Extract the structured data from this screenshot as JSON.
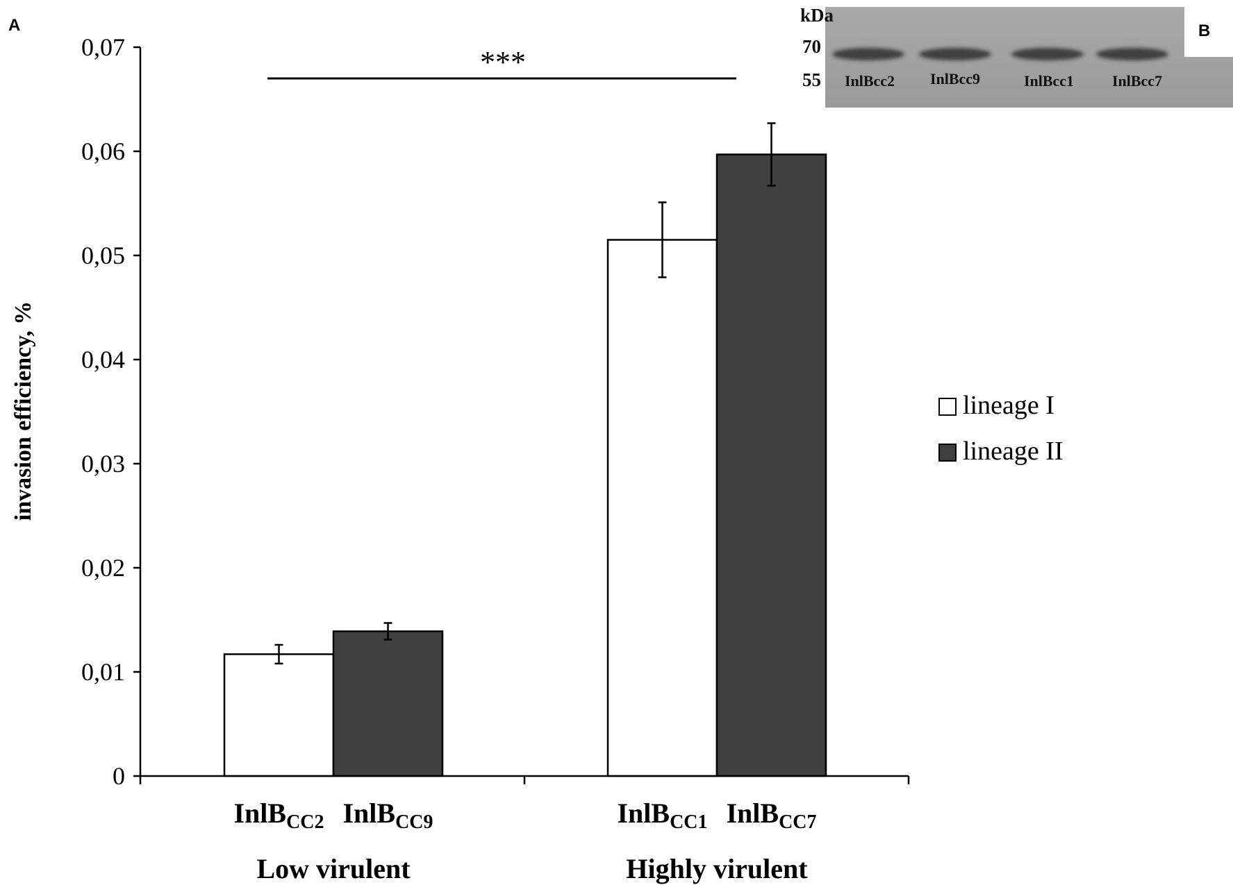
{
  "panel_labels": {
    "a": "A",
    "b": "B"
  },
  "chart_data": {
    "type": "bar",
    "title": "",
    "xlabel": "",
    "ylabel": "invasion efficiency, %",
    "ylim": [
      0,
      0.07
    ],
    "yticks": [
      {
        "value": 0,
        "label": "0"
      },
      {
        "value": 0.01,
        "label": "0,01"
      },
      {
        "value": 0.02,
        "label": "0,02"
      },
      {
        "value": 0.03,
        "label": "0,03"
      },
      {
        "value": 0.04,
        "label": "0,04"
      },
      {
        "value": 0.05,
        "label": "0,05"
      },
      {
        "value": 0.06,
        "label": "0,06"
      },
      {
        "value": 0.07,
        "label": "0,07"
      }
    ],
    "grid": false,
    "legend_position": "right",
    "groups": [
      {
        "label": "Low virulent",
        "bars": [
          {
            "label_main": "InlB",
            "label_sub": "CC2",
            "series": "lineage I",
            "value": 0.0117,
            "error": 0.0009
          },
          {
            "label_main": "InlB",
            "label_sub": "CC9",
            "series": "lineage II",
            "value": 0.0139,
            "error": 0.0008
          }
        ]
      },
      {
        "label": "Highly virulent",
        "bars": [
          {
            "label_main": "InlB",
            "label_sub": "CC1",
            "series": "lineage I",
            "value": 0.0515,
            "error": 0.0036
          },
          {
            "label_main": "InlB",
            "label_sub": "CC7",
            "series": "lineage II",
            "value": 0.0597,
            "error": 0.003
          }
        ]
      }
    ],
    "series": [
      {
        "name": "lineage I",
        "color": "#ffffff"
      },
      {
        "name": "lineage II",
        "color": "#404040"
      }
    ],
    "significance": {
      "label": "***",
      "between": [
        "Low virulent",
        "Highly virulent"
      ]
    }
  },
  "blot": {
    "unit": "kDa",
    "markers": [
      "70",
      "55"
    ],
    "lanes": [
      "InlBcc2",
      "InlBcc9",
      "InlBcc1",
      "InlBcc7"
    ]
  }
}
